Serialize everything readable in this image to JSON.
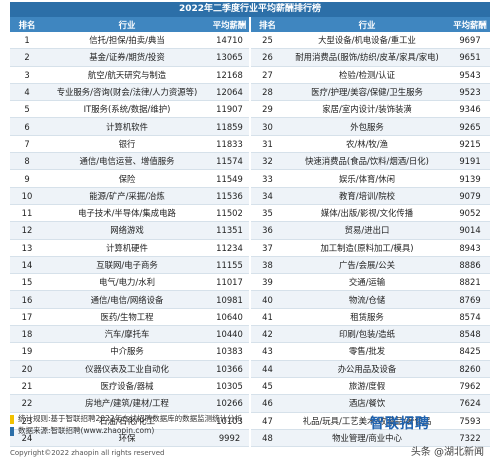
{
  "title": "2022年二季度行业平均薪酬排行榜",
  "headers": [
    "排名",
    "行业",
    "平均薪酬",
    "排名",
    "行业",
    "平均薪酬"
  ],
  "left": [
    {
      "rank": "1",
      "industry": "信托/担保/拍卖/典当",
      "salary": "14710"
    },
    {
      "rank": "2",
      "industry": "基金/证券/期货/投资",
      "salary": "13065"
    },
    {
      "rank": "3",
      "industry": "航空/航天研究与制造",
      "salary": "12168"
    },
    {
      "rank": "4",
      "industry": "专业服务/咨询(财会/法律/人力资源等)",
      "salary": "12064"
    },
    {
      "rank": "5",
      "industry": "IT服务(系统/数据/维护)",
      "salary": "11907"
    },
    {
      "rank": "6",
      "industry": "计算机软件",
      "salary": "11859"
    },
    {
      "rank": "7",
      "industry": "银行",
      "salary": "11833"
    },
    {
      "rank": "8",
      "industry": "通信/电信运营、增值服务",
      "salary": "11574"
    },
    {
      "rank": "9",
      "industry": "保险",
      "salary": "11549"
    },
    {
      "rank": "10",
      "industry": "能源/矿产/采掘/冶炼",
      "salary": "11536"
    },
    {
      "rank": "11",
      "industry": "电子技术/半导体/集成电路",
      "salary": "11502"
    },
    {
      "rank": "12",
      "industry": "网络游戏",
      "salary": "11351"
    },
    {
      "rank": "13",
      "industry": "计算机硬件",
      "salary": "11234"
    },
    {
      "rank": "14",
      "industry": "互联网/电子商务",
      "salary": "11155"
    },
    {
      "rank": "15",
      "industry": "电气/电力/水利",
      "salary": "11017"
    },
    {
      "rank": "16",
      "industry": "通信/电信/网络设备",
      "salary": "10981"
    },
    {
      "rank": "17",
      "industry": "医药/生物工程",
      "salary": "10640"
    },
    {
      "rank": "18",
      "industry": "汽车/摩托车",
      "salary": "10440"
    },
    {
      "rank": "19",
      "industry": "中介服务",
      "salary": "10383"
    },
    {
      "rank": "20",
      "industry": "仪器仪表及工业自动化",
      "salary": "10366"
    },
    {
      "rank": "21",
      "industry": "医疗设备/器械",
      "salary": "10305"
    },
    {
      "rank": "22",
      "industry": "房地产/建筑/建材/工程",
      "salary": "10266"
    },
    {
      "rank": "23",
      "industry": "石油/石化/化工",
      "salary": "10103"
    },
    {
      "rank": "24",
      "industry": "环保",
      "salary": "9992"
    }
  ],
  "right": [
    {
      "rank": "25",
      "industry": "大型设备/机电设备/重工业",
      "salary": "9697"
    },
    {
      "rank": "26",
      "industry": "耐用消费品(服饰/纺织/皮革/家具/家电)",
      "salary": "9651"
    },
    {
      "rank": "27",
      "industry": "检验/检测/认证",
      "salary": "9543"
    },
    {
      "rank": "28",
      "industry": "医疗/护理/美容/保健/卫生服务",
      "salary": "9523"
    },
    {
      "rank": "29",
      "industry": "家居/室内设计/装饰装潢",
      "salary": "9346"
    },
    {
      "rank": "30",
      "industry": "外包服务",
      "salary": "9265"
    },
    {
      "rank": "31",
      "industry": "农/林/牧/渔",
      "salary": "9215"
    },
    {
      "rank": "32",
      "industry": "快速消费品(食品/饮料/烟酒/日化)",
      "salary": "9191"
    },
    {
      "rank": "33",
      "industry": "娱乐/体育/休闲",
      "salary": "9139"
    },
    {
      "rank": "34",
      "industry": "教育/培训/院校",
      "salary": "9079"
    },
    {
      "rank": "35",
      "industry": "媒体/出版/影视/文化传播",
      "salary": "9052"
    },
    {
      "rank": "36",
      "industry": "贸易/进出口",
      "salary": "9014"
    },
    {
      "rank": "37",
      "industry": "加工制造(原料加工/模具)",
      "salary": "8943"
    },
    {
      "rank": "38",
      "industry": "广告/会展/公关",
      "salary": "8886"
    },
    {
      "rank": "39",
      "industry": "交通/运输",
      "salary": "8821"
    },
    {
      "rank": "40",
      "industry": "物流/仓储",
      "salary": "8769"
    },
    {
      "rank": "41",
      "industry": "租赁服务",
      "salary": "8574"
    },
    {
      "rank": "42",
      "industry": "印刷/包装/造纸",
      "salary": "8548"
    },
    {
      "rank": "43",
      "industry": "零售/批发",
      "salary": "8425"
    },
    {
      "rank": "44",
      "industry": "办公用品及设备",
      "salary": "8260"
    },
    {
      "rank": "45",
      "industry": "旅游/度假",
      "salary": "7962"
    },
    {
      "rank": "46",
      "industry": "酒店/餐饮",
      "salary": "7624"
    },
    {
      "rank": "47",
      "industry": "礼品/玩具/工艺美术/收藏品/奢侈品",
      "salary": "7593"
    },
    {
      "rank": "48",
      "industry": "物业管理/商业中心",
      "salary": "7322"
    }
  ],
  "footer": {
    "rule": "统计规则:基于智联招聘2022年在线招聘数据库的数据监测统计分析",
    "source": "数据来源:智联招聘(www.zhaopin.com)",
    "copyright": "Copyright©2022 zhaopin all rights reserved",
    "logo": "智联招聘",
    "watermark": "头条 @湖北新闻"
  },
  "colors": {
    "header": "#3f86c0",
    "title": "#2c6fa8",
    "stripe": "#eef3f8",
    "accent_yellow": "#f2c100"
  }
}
